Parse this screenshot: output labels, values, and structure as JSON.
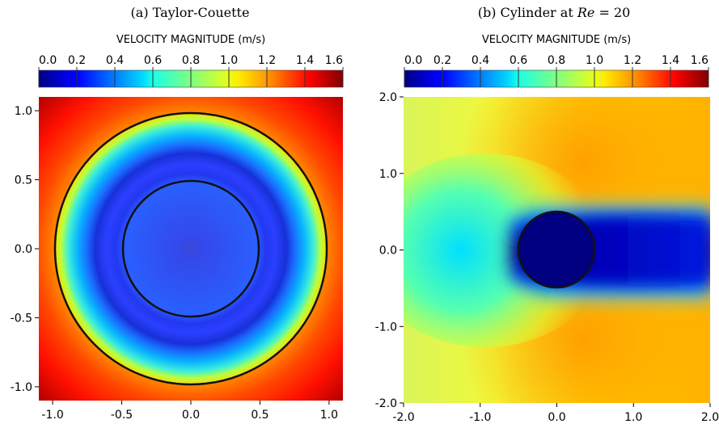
{
  "chart_data": [
    {
      "type": "heatmap",
      "title": "(a) Taylor-Couette",
      "colorbar": {
        "label": "VELOCITY MAGNITUDE (m/s)",
        "range": [
          0.0,
          1.6
        ],
        "ticks": [
          "0.0",
          "0.2",
          "0.4",
          "0.6",
          "0.8",
          "1.0",
          "1.2",
          "1.4",
          "1.6"
        ],
        "colormap": "jet"
      },
      "xlim": [
        -1.1,
        1.1
      ],
      "ylim": [
        -1.1,
        1.1
      ],
      "xticks": [
        "-1.0",
        "-0.5",
        "0.0",
        "0.5",
        "1.0"
      ],
      "yticks": [
        "1.0",
        "0.5",
        "0.0",
        "-0.5",
        "-1.0"
      ],
      "boundaries": [
        {
          "shape": "circle",
          "center": [
            0.0,
            0.0
          ],
          "radius": 0.5
        },
        {
          "shape": "circle",
          "center": [
            0.0,
            0.0
          ],
          "radius": 1.0
        }
      ]
    },
    {
      "type": "heatmap",
      "title": {
        "prefix": "(b) Cylinder at ",
        "var": "Re",
        "suffix": " = 20"
      },
      "colorbar": {
        "label": "VELOCITY MAGNITUDE (m/s)",
        "range": [
          0.0,
          1.6
        ],
        "ticks": [
          "0.0",
          "0.2",
          "0.4",
          "0.6",
          "0.8",
          "1.0",
          "1.2",
          "1.4",
          "1.6"
        ],
        "colormap": "jet"
      },
      "xlim": [
        -2.0,
        2.0
      ],
      "ylim": [
        -2.0,
        2.0
      ],
      "xticks": [
        "-2.0",
        "-1.0",
        "0.0",
        "1.0",
        "2.0"
      ],
      "yticks": [
        "2.0",
        "1.0",
        "0.0",
        "-1.0",
        "-2.0"
      ],
      "boundaries": [
        {
          "shape": "circle",
          "center": [
            0.0,
            0.0
          ],
          "radius": 0.5
        }
      ]
    }
  ]
}
